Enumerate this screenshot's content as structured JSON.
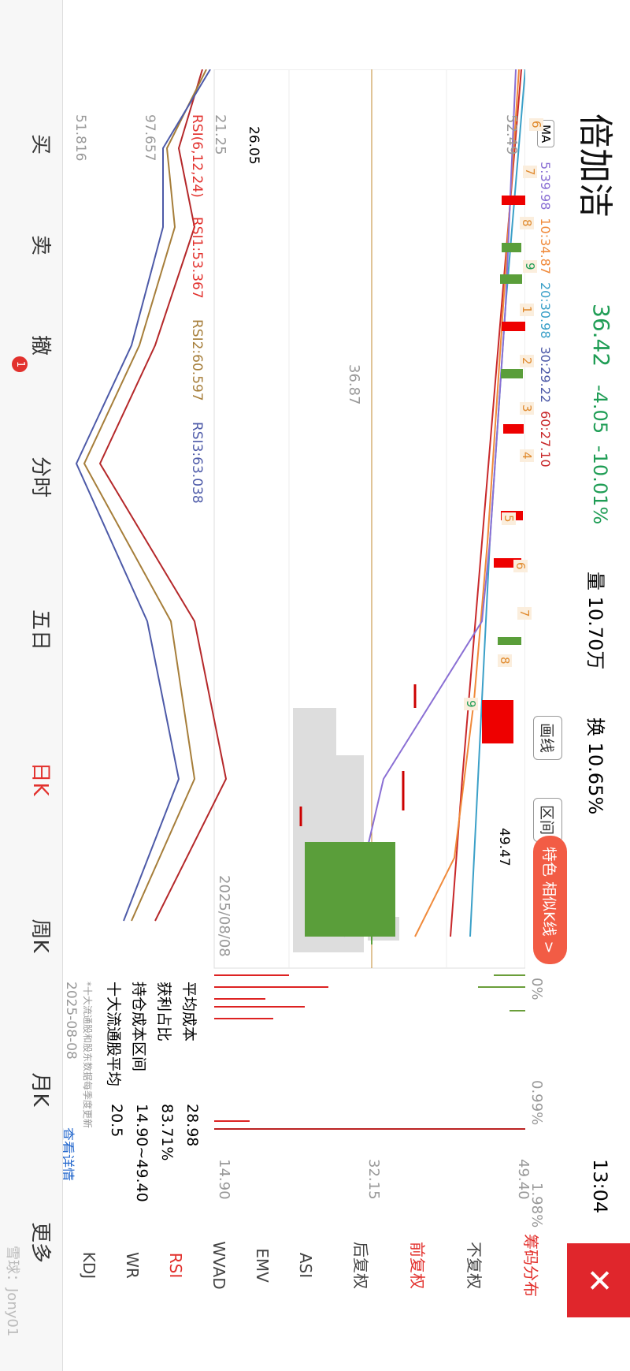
{
  "header": {
    "name": "倍加洁",
    "price": "36.42",
    "change": "-4.05",
    "change_pct": "-10.01%",
    "volume": "量 10.70万",
    "turnover": "换 10.65%",
    "time": "13:04"
  },
  "ma": {
    "button": "MA",
    "items": [
      "5:39.98",
      "10:34.87",
      "20:30.98",
      "30:29.22",
      "60:27.10"
    ]
  },
  "price_axis": [
    "52.49",
    "36.87",
    "21.25"
  ],
  "chart_labels": {
    "high": "49.47",
    "low": "26.05",
    "date": "2025/08/08",
    "draw_line": "画线",
    "range": "区间",
    "feature": "特色 相似K线 >"
  },
  "sequence_labels": [
    "6",
    "7",
    "8",
    "9",
    "1",
    "2",
    "3",
    "4",
    "5",
    "6",
    "7",
    "8",
    "9"
  ],
  "rsi": {
    "title": "RSI(6,12,24)",
    "rsi1": "RSI1:53.367",
    "rsi2": "RSI2:60.597",
    "rsi3": "RSI3:63.038",
    "top": "97.657",
    "bottom": "51.816"
  },
  "chips": {
    "x_axis": [
      "0%",
      "0.99%",
      "1.98%"
    ],
    "y_axis": [
      "49.40",
      "32.15",
      "14.90"
    ],
    "rows": [
      [
        "平均成本",
        "28.98"
      ],
      [
        "获利占比",
        "83.71%"
      ],
      [
        "持仓成本区间",
        "14.90~49.40"
      ],
      [
        "十大流通股平均",
        "20.5"
      ]
    ],
    "note": "*十大流通股和股东数据每季度更新",
    "date": "2025-08-08",
    "detail": "查看详情"
  },
  "options": [
    "筹码分布",
    "不复权",
    "前复权",
    "后复权",
    "ASI",
    "EMV",
    "WVAD",
    "RSI",
    "WR",
    "KDJ"
  ],
  "tabs": [
    "买",
    "卖",
    "撤",
    "分时",
    "五日",
    "日K",
    "周K",
    "月K",
    "更多"
  ],
  "badge": "1",
  "watermark": "雪球：Jony01"
}
